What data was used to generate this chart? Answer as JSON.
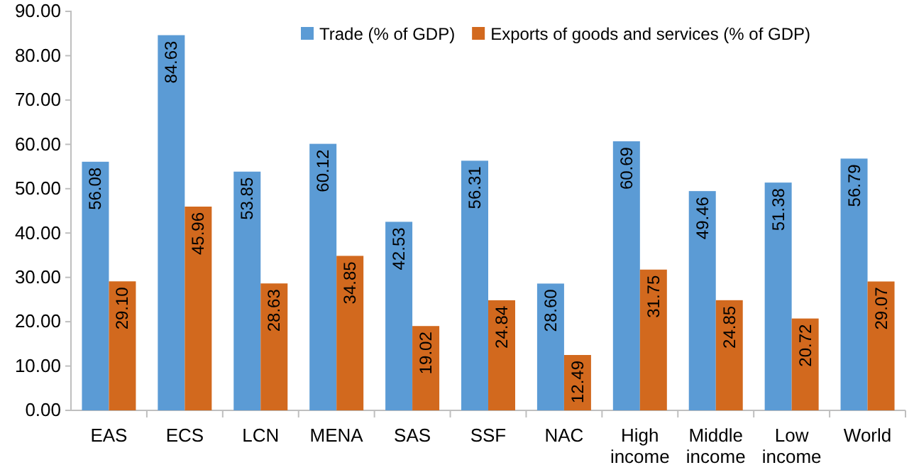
{
  "chart_data": {
    "type": "bar",
    "categories": [
      "EAS",
      "ECS",
      "LCN",
      "MENA",
      "SAS",
      "SSF",
      "NAC",
      "High income",
      "Middle income",
      "Low income",
      "World"
    ],
    "series": [
      {
        "name": "Trade (% of GDP)",
        "color": "#5b9bd5",
        "values": [
          56.08,
          84.63,
          53.85,
          60.12,
          42.53,
          56.31,
          28.6,
          60.69,
          49.46,
          51.38,
          56.79
        ],
        "value_labels": [
          "56.08",
          "84.63",
          "53.85",
          "60.12",
          "42.53",
          "56.31",
          "28.60",
          "60.69",
          "49.46",
          "51.38",
          "56.79"
        ]
      },
      {
        "name": "Exports of goods and services (% of GDP)",
        "color": "#d2691e",
        "values": [
          29.1,
          45.96,
          28.63,
          34.85,
          19.02,
          24.84,
          12.49,
          31.75,
          24.85,
          20.72,
          29.07
        ],
        "value_labels": [
          "29.10",
          "45.96",
          "28.63",
          "34.85",
          "19.02",
          "24.84",
          "12.49",
          "31.75",
          "24.85",
          "20.72",
          "29.07"
        ]
      }
    ],
    "ylim": [
      0,
      90
    ],
    "yticks": [
      {
        "value": 0,
        "label": "0.00"
      },
      {
        "value": 10,
        "label": "10.00"
      },
      {
        "value": 20,
        "label": "20.00"
      },
      {
        "value": 30,
        "label": "30.00"
      },
      {
        "value": 40,
        "label": "40.00"
      },
      {
        "value": 50,
        "label": "50.00"
      },
      {
        "value": 60,
        "label": "60.00"
      },
      {
        "value": 70,
        "label": "70.00"
      },
      {
        "value": 80,
        "label": "80.00"
      },
      {
        "value": 90,
        "label": "90.00"
      }
    ],
    "legend": "top right",
    "grid": false
  }
}
